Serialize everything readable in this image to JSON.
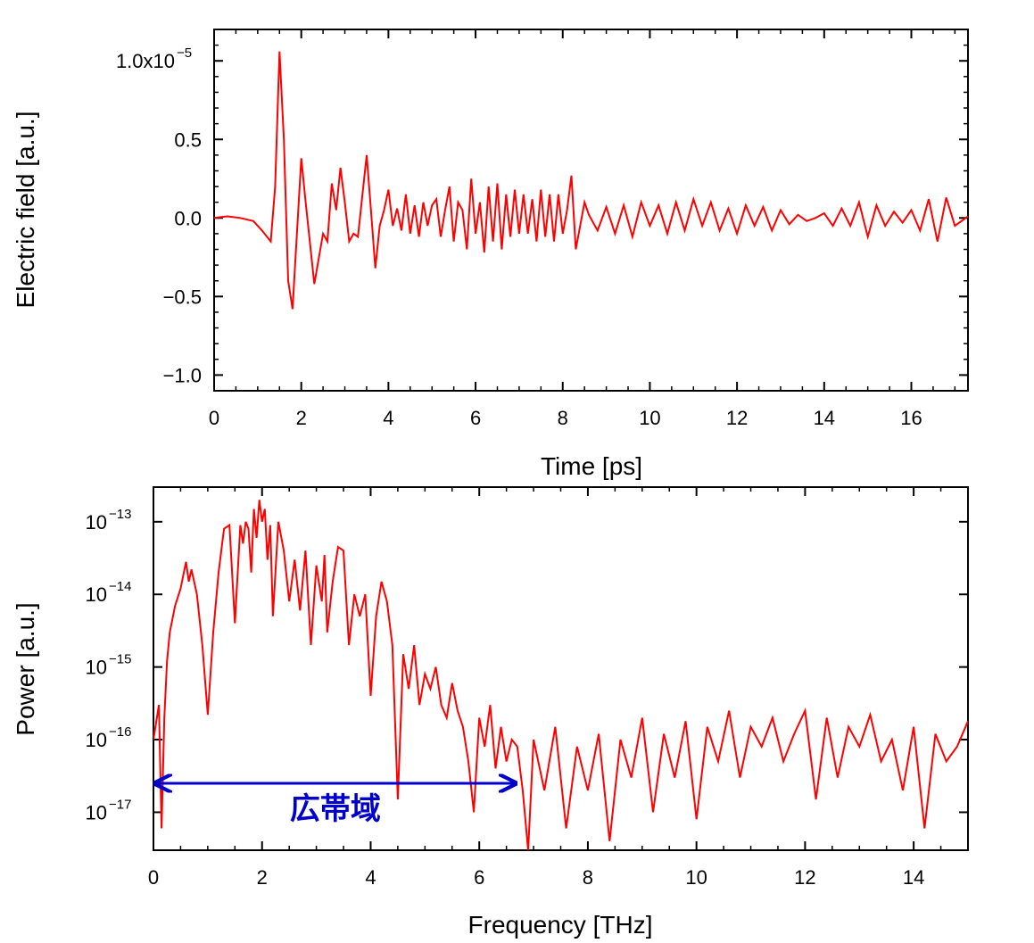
{
  "chart_data": [
    {
      "type": "line",
      "xlabel": "Time [ps]",
      "ylabel": "Electric field [a.u.]",
      "xlim": [
        0,
        17.3
      ],
      "ylim": [
        -1.1e-05,
        1.2e-05
      ],
      "x_ticks": [
        0,
        2,
        4,
        6,
        8,
        10,
        12,
        14,
        16
      ],
      "x_tick_labels": [
        "0",
        "2",
        "4",
        "6",
        "8",
        "10",
        "12",
        "14",
        "16"
      ],
      "y_ticks": [
        1e-05,
        5e-06,
        0,
        -5e-06,
        -1e-05
      ],
      "y_tick_labels": [
        "1.0x10",
        "0.5",
        "0.0",
        "−0.5",
        "−1.0"
      ],
      "y_tick_exponent": "−5",
      "grid": false,
      "series": [
        {
          "color": "#ff0000",
          "x": [
            0,
            0.3,
            0.6,
            0.9,
            1.1,
            1.3,
            1.4,
            1.5,
            1.6,
            1.7,
            1.8,
            1.9,
            2.0,
            2.1,
            2.3,
            2.5,
            2.6,
            2.7,
            2.8,
            2.9,
            3.0,
            3.1,
            3.2,
            3.3,
            3.5,
            3.6,
            3.7,
            3.8,
            3.9,
            4.0,
            4.1,
            4.2,
            4.3,
            4.4,
            4.5,
            4.6,
            4.7,
            4.8,
            4.9,
            5.0,
            5.1,
            5.2,
            5.3,
            5.4,
            5.5,
            5.6,
            5.7,
            5.8,
            5.9,
            6.0,
            6.1,
            6.2,
            6.3,
            6.4,
            6.5,
            6.6,
            6.7,
            6.8,
            6.9,
            7.0,
            7.1,
            7.2,
            7.3,
            7.4,
            7.5,
            7.6,
            7.7,
            7.8,
            7.9,
            8.0,
            8.1,
            8.2,
            8.3,
            8.4,
            8.5,
            8.6,
            8.8,
            9.0,
            9.2,
            9.4,
            9.6,
            9.8,
            10.0,
            10.2,
            10.4,
            10.6,
            10.8,
            11.0,
            11.2,
            11.4,
            11.6,
            11.8,
            12.0,
            12.2,
            12.4,
            12.6,
            12.8,
            13.0,
            13.2,
            13.4,
            13.6,
            13.8,
            14.0,
            14.2,
            14.4,
            14.6,
            14.8,
            15.0,
            15.2,
            15.4,
            15.6,
            15.8,
            16.0,
            16.2,
            16.4,
            16.6,
            16.8,
            17.0,
            17.3
          ],
          "y": [
            0.0,
            1e-07,
            0.0,
            -2e-07,
            -8e-07,
            -1.5e-06,
            2e-06,
            1.06e-05,
            5e-06,
            -4e-06,
            -5.8e-06,
            -1e-06,
            3.8e-06,
            1e-06,
            -4.2e-06,
            -1e-06,
            -1.5e-06,
            2.2e-06,
            5e-07,
            3.2e-06,
            1e-06,
            -1.5e-06,
            -1e-06,
            -1.2e-06,
            4e-06,
            5e-07,
            -3.2e-06,
            -5e-07,
            5e-07,
            1.8e-06,
            -5e-07,
            6e-07,
            -8e-07,
            1.5e-06,
            -1e-06,
            8e-07,
            -1.2e-06,
            1e-06,
            -5e-07,
            8e-07,
            1.2e-06,
            -1.2e-06,
            5e-07,
            2e-06,
            -1.5e-06,
            1e-06,
            5e-07,
            -2e-06,
            2.5e-06,
            -1e-06,
            1e-06,
            -2.2e-06,
            2e-06,
            -1.5e-06,
            2.2e-06,
            -2e-06,
            1.5e-06,
            -1.2e-06,
            1.8e-06,
            -1e-06,
            1.5e-06,
            -1e-06,
            1.2e-06,
            -1.5e-06,
            1.8e-06,
            -1.2e-06,
            1.5e-06,
            -1.5e-06,
            1.5e-06,
            -1e-06,
            5e-07,
            2.7e-06,
            -2e-06,
            -5e-07,
            1e-06,
            2e-07,
            -8e-07,
            7e-07,
            -1e-06,
            8e-07,
            -1.2e-06,
            1e-06,
            -5e-07,
            8e-07,
            -1e-06,
            1e-06,
            -8e-07,
            1.2e-06,
            -5e-07,
            1e-06,
            -8e-07,
            6e-07,
            -1e-06,
            8e-07,
            -5e-07,
            7e-07,
            -8e-07,
            5e-07,
            -4e-07,
            2e-07,
            -2e-07,
            0.0,
            3e-07,
            -5e-07,
            6e-07,
            -5e-07,
            1e-06,
            -1.2e-06,
            8e-07,
            -5e-07,
            4e-07,
            -3e-07,
            5e-07,
            -8e-07,
            1.2e-06,
            -1.5e-06,
            1.3e-06,
            -5e-07,
            1e-07
          ]
        }
      ]
    },
    {
      "type": "line",
      "xlabel": "Frequency [THz]",
      "ylabel": "Power [a.u.]",
      "yscale": "log",
      "xlim": [
        0,
        15
      ],
      "ylim": [
        3e-18,
        3e-13
      ],
      "x_ticks": [
        0,
        2,
        4,
        6,
        8,
        10,
        12,
        14
      ],
      "x_tick_labels": [
        "0",
        "2",
        "4",
        "6",
        "8",
        "10",
        "12",
        "14"
      ],
      "y_ticks": [
        1e-13,
        1e-14,
        1e-15,
        1e-16,
        1e-17
      ],
      "y_tick_labels": [
        "10",
        "10",
        "10",
        "10",
        "10"
      ],
      "y_tick_exponents": [
        "−13",
        "−14",
        "−15",
        "−16",
        "−17"
      ],
      "grid": false,
      "annotation": {
        "text": "広帯域",
        "arrow_from_x": 0,
        "arrow_to_x": 6.7,
        "arrow_y": 2.5e-17,
        "color": "#0000cc"
      },
      "series": [
        {
          "color": "#ff0000",
          "x": [
            0,
            0.1,
            0.15,
            0.2,
            0.25,
            0.3,
            0.4,
            0.5,
            0.6,
            0.65,
            0.7,
            0.8,
            0.9,
            1.0,
            1.1,
            1.2,
            1.3,
            1.4,
            1.5,
            1.6,
            1.65,
            1.7,
            1.75,
            1.8,
            1.85,
            1.9,
            1.95,
            2.0,
            2.05,
            2.1,
            2.15,
            2.2,
            2.3,
            2.4,
            2.5,
            2.6,
            2.7,
            2.8,
            2.9,
            3.0,
            3.1,
            3.15,
            3.2,
            3.3,
            3.4,
            3.5,
            3.6,
            3.7,
            3.8,
            3.9,
            4.0,
            4.1,
            4.2,
            4.3,
            4.4,
            4.5,
            4.6,
            4.7,
            4.8,
            4.9,
            5.0,
            5.1,
            5.2,
            5.3,
            5.4,
            5.5,
            5.6,
            5.7,
            5.8,
            5.9,
            6.0,
            6.1,
            6.2,
            6.3,
            6.4,
            6.5,
            6.6,
            6.7,
            6.8,
            6.9,
            7.0,
            7.2,
            7.4,
            7.6,
            7.8,
            8.0,
            8.2,
            8.4,
            8.6,
            8.8,
            9.0,
            9.2,
            9.4,
            9.6,
            9.8,
            10.0,
            10.2,
            10.4,
            10.6,
            10.8,
            11.0,
            11.2,
            11.4,
            11.6,
            11.8,
            12.0,
            12.2,
            12.4,
            12.6,
            12.8,
            13.0,
            13.2,
            13.4,
            13.6,
            13.8,
            14.0,
            14.2,
            14.4,
            14.6,
            14.8,
            15.0
          ],
          "y": [
            1e-16,
            3e-16,
            6e-18,
            2e-16,
            1.2e-15,
            3e-15,
            7e-15,
            1.2e-14,
            2.8e-14,
            1.5e-14,
            2.2e-14,
            1e-14,
            2e-15,
            2.2e-16,
            3e-15,
            2e-14,
            8e-14,
            9e-14,
            4e-15,
            9e-14,
            5e-14,
            1e-13,
            8e-14,
            2e-14,
            1.5e-13,
            6e-14,
            2e-13,
            1e-13,
            1.5e-13,
            3e-14,
            9e-14,
            5e-15,
            1e-13,
            4e-14,
            8e-15,
            3e-14,
            6e-15,
            4e-14,
            2e-15,
            2.5e-14,
            8e-15,
            3.5e-14,
            3e-15,
            1.5e-14,
            4.5e-14,
            4e-14,
            2e-15,
            1e-14,
            5e-15,
            1e-14,
            4e-16,
            5e-15,
            1.5e-14,
            8e-15,
            2e-15,
            1.5e-17,
            1.5e-15,
            5e-16,
            2e-15,
            3e-16,
            8e-16,
            5e-16,
            1e-15,
            3e-16,
            2e-16,
            6e-16,
            2.5e-16,
            1.5e-16,
            5e-17,
            1e-17,
            2e-16,
            8e-17,
            3e-16,
            4e-17,
            1.5e-16,
            5e-17,
            1e-16,
            8e-17,
            2e-17,
            3e-18,
            1e-16,
            2e-17,
            1.5e-16,
            6e-18,
            8e-17,
            2e-17,
            1.2e-16,
            4e-18,
            1e-16,
            3e-17,
            2e-16,
            1e-17,
            1.2e-16,
            3e-17,
            1.8e-16,
            8e-18,
            1.5e-16,
            5e-17,
            2.5e-16,
            3e-17,
            1.5e-16,
            8e-17,
            2e-16,
            5e-17,
            1.2e-16,
            2.5e-16,
            1.5e-17,
            2e-16,
            3e-17,
            1.5e-16,
            8e-17,
            2.2e-16,
            5e-17,
            1e-16,
            2e-17,
            1.5e-16,
            6e-18,
            1.2e-16,
            5e-17,
            8e-17,
            1.8e-16
          ]
        }
      ]
    }
  ]
}
